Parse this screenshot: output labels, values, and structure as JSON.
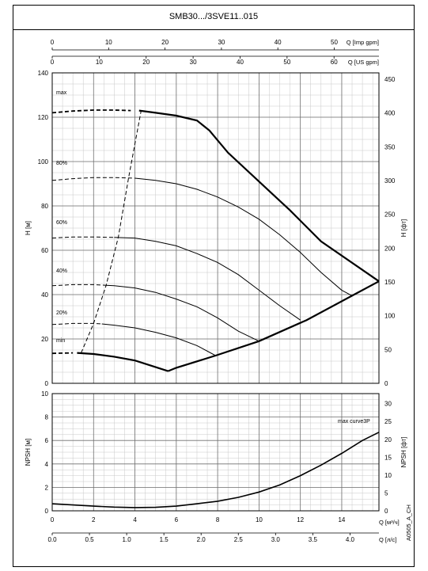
{
  "title": "SMB30.../3SVE11..015",
  "code": "A0505_A_CH",
  "chart_data": {
    "type": "line",
    "top_axes": {
      "imp": {
        "label": "Q [Imp gpm]",
        "ticks": [
          0,
          10,
          20,
          30,
          40,
          50
        ]
      },
      "us": {
        "label": "Q [US gpm]",
        "ticks": [
          0,
          10,
          20,
          30,
          40,
          50,
          60
        ]
      }
    },
    "bottom_axes": {
      "m3h": {
        "label": "Q [м³/ч]",
        "ticks": [
          0,
          2,
          4,
          6,
          8,
          10,
          12,
          14
        ]
      },
      "ls": {
        "label": "Q [л/с]",
        "ticks": [
          "0.0",
          "0.5",
          "1.0",
          "1.5",
          "2.0",
          "2.5",
          "3.0",
          "3.5",
          "4.0"
        ]
      }
    },
    "head_chart": {
      "ylabel": "H [м]",
      "ylabel_right": "H [фт]",
      "xlim": [
        0,
        15.8
      ],
      "ylim": [
        0,
        140
      ],
      "yticks": [
        0,
        20,
        40,
        60,
        80,
        100,
        120,
        140
      ],
      "yticks_right": [
        0,
        50,
        100,
        150,
        200,
        250,
        300,
        350,
        400,
        450
      ],
      "grid": true,
      "speed_labels": [
        "max",
        "80%",
        "60%",
        "40%",
        "20%",
        "min"
      ],
      "series": [
        {
          "dashed": [
            [
              0,
              122
            ],
            [
              1,
              122.8
            ],
            [
              2,
              123.2
            ],
            [
              3,
              123.2
            ],
            [
              3.8,
              123
            ]
          ],
          "solid": [
            [
              4.2,
              123
            ],
            [
              5,
              122
            ],
            [
              6,
              120.7
            ],
            [
              7,
              118.5
            ],
            [
              7.6,
              114
            ],
            [
              8.5,
              104
            ],
            [
              10,
              91
            ],
            [
              11.5,
              78
            ],
            [
              13,
              64
            ],
            [
              15.8,
              46
            ]
          ]
        },
        {
          "dashed": [
            [
              0,
              91.5
            ],
            [
              1,
              92.3
            ],
            [
              2,
              92.8
            ],
            [
              3,
              92.8
            ],
            [
              4,
              92.5
            ]
          ],
          "solid": [
            [
              4,
              92.5
            ],
            [
              5,
              91.5
            ],
            [
              6,
              90
            ],
            [
              7,
              87.5
            ],
            [
              8,
              84
            ],
            [
              9,
              79.5
            ],
            [
              10,
              74
            ],
            [
              11,
              67
            ],
            [
              12,
              59
            ],
            [
              13,
              50
            ],
            [
              14,
              42
            ],
            [
              14.5,
              39.5
            ]
          ]
        },
        {
          "dashed": [
            [
              0,
              65.5
            ],
            [
              1,
              66
            ],
            [
              2,
              66
            ],
            [
              3,
              65.8
            ]
          ],
          "solid": [
            [
              3,
              65.8
            ],
            [
              4,
              65.5
            ],
            [
              5,
              64
            ],
            [
              6,
              62
            ],
            [
              7,
              58.5
            ],
            [
              8,
              54.5
            ],
            [
              9,
              49
            ],
            [
              10,
              42
            ],
            [
              11,
              35
            ],
            [
              12,
              28.5
            ]
          ]
        },
        {
          "dashed": [
            [
              0,
              44
            ],
            [
              1,
              44.5
            ],
            [
              2,
              44.5
            ],
            [
              2.6,
              44.2
            ]
          ],
          "solid": [
            [
              2.6,
              44.2
            ],
            [
              3,
              44
            ],
            [
              4,
              43
            ],
            [
              5,
              41
            ],
            [
              6,
              38
            ],
            [
              7,
              34.5
            ],
            [
              8,
              29.5
            ],
            [
              9,
              23.5
            ],
            [
              10,
              19
            ]
          ]
        },
        {
          "dashed": [
            [
              0,
              26.5
            ],
            [
              1,
              27
            ],
            [
              2,
              27
            ],
            [
              2.4,
              26.8
            ]
          ],
          "solid": [
            [
              2.4,
              26.8
            ],
            [
              3,
              26.2
            ],
            [
              4,
              25
            ],
            [
              5,
              23
            ],
            [
              6,
              20.5
            ],
            [
              7,
              17
            ],
            [
              7.9,
              12.5
            ]
          ]
        },
        {
          "dashed": [
            [
              0,
              13.5
            ],
            [
              1,
              13.7
            ]
          ],
          "solid": [
            [
              1.2,
              13.7
            ],
            [
              2,
              13.2
            ],
            [
              3,
              12
            ],
            [
              4,
              10.3
            ],
            [
              5.6,
              5.5
            ]
          ]
        }
      ],
      "boundary_right": [
        [
          5.6,
          5.5
        ],
        [
          6,
          7
        ],
        [
          7.9,
          12.5
        ],
        [
          10,
          19
        ],
        [
          12.3,
          28.5
        ],
        [
          14.5,
          39.5
        ],
        [
          15.8,
          46
        ]
      ],
      "min_flow_line": [
        [
          1.4,
          13.7
        ],
        [
          2,
          27
        ],
        [
          2.6,
          44
        ],
        [
          3.2,
          66
        ],
        [
          3.7,
          93
        ],
        [
          4.3,
          123
        ]
      ]
    },
    "npsh_chart": {
      "ylabel": "NPSH [м]",
      "ylabel_right": "NPSH [фт]",
      "xlim": [
        0,
        15.8
      ],
      "ylim": [
        0,
        10
      ],
      "yticks": [
        0,
        2,
        4,
        6,
        8,
        10
      ],
      "yticks_right": [
        0,
        5,
        10,
        15,
        20,
        25,
        30
      ],
      "grid": true,
      "annotation": "max curve3P",
      "series": [
        {
          "values": [
            [
              0,
              0.6
            ],
            [
              1,
              0.5
            ],
            [
              2,
              0.4
            ],
            [
              3,
              0.32
            ],
            [
              4,
              0.28
            ],
            [
              5,
              0.3
            ],
            [
              6,
              0.4
            ],
            [
              7,
              0.6
            ],
            [
              8,
              0.82
            ],
            [
              9,
              1.15
            ],
            [
              10,
              1.6
            ],
            [
              11,
              2.2
            ],
            [
              12,
              3.0
            ],
            [
              13,
              3.9
            ],
            [
              14,
              4.9
            ],
            [
              15,
              6.0
            ],
            [
              15.8,
              6.7
            ]
          ]
        }
      ]
    }
  }
}
